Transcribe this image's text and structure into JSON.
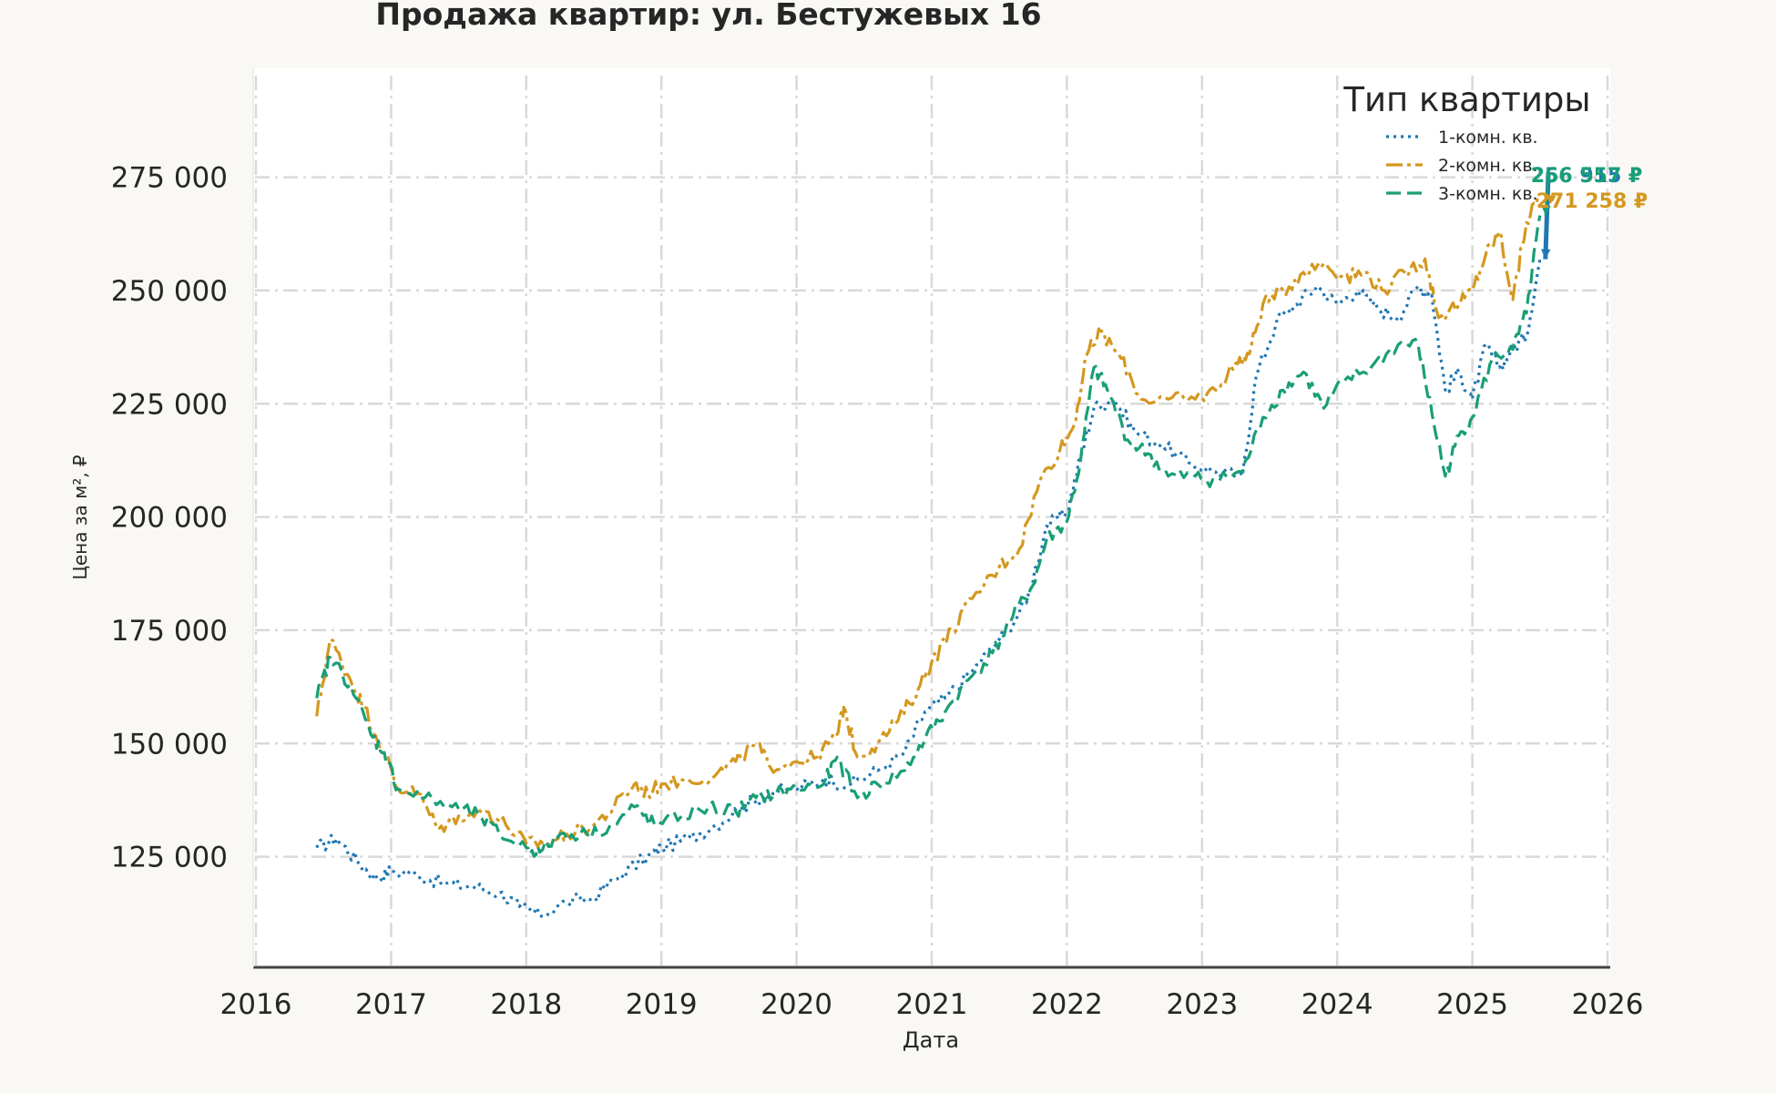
{
  "chart_data": {
    "type": "line",
    "title": "Продажа квартир: ул. Бестужевых 16",
    "xlabel": "Дата",
    "ylabel": "Цена за м², ₽",
    "xlim": [
      2016.0,
      2026.0
    ],
    "ylim": [
      103000,
      290000
    ],
    "x_ticks": [
      2016,
      2017,
      2018,
      2019,
      2020,
      2021,
      2022,
      2023,
      2024,
      2025,
      2026
    ],
    "x_tick_labels": [
      "2016",
      "2017",
      "2018",
      "2019",
      "2020",
      "2021",
      "2022",
      "2023",
      "2024",
      "2025",
      "2026"
    ],
    "y_ticks": [
      125000,
      150000,
      175000,
      200000,
      225000,
      250000,
      275000
    ],
    "y_tick_labels": [
      "125 000",
      "150 000",
      "175 000",
      "200 000",
      "225 000",
      "250 000",
      "275 000"
    ],
    "grid": true,
    "legend": {
      "title": "Тип квартиры",
      "placement": "top-right"
    },
    "series": [
      {
        "name": "1-комн. кв.",
        "color": "#1f77b4",
        "dash": "dotted",
        "end_label": "256 915 ₽",
        "points": [
          [
            2016.45,
            127000
          ],
          [
            2016.6,
            129000
          ],
          [
            2016.75,
            124000
          ],
          [
            2016.9,
            120000
          ],
          [
            2017.0,
            122000
          ],
          [
            2017.2,
            121000
          ],
          [
            2017.4,
            119000
          ],
          [
            2017.6,
            118500
          ],
          [
            2017.8,
            117000
          ],
          [
            2017.95,
            114000
          ],
          [
            2018.1,
            112000
          ],
          [
            2018.3,
            115000
          ],
          [
            2018.5,
            116000
          ],
          [
            2018.7,
            121000
          ],
          [
            2018.9,
            125000
          ],
          [
            2019.0,
            127000
          ],
          [
            2019.2,
            129000
          ],
          [
            2019.4,
            132000
          ],
          [
            2019.6,
            136000
          ],
          [
            2019.8,
            139000
          ],
          [
            2020.0,
            140000
          ],
          [
            2020.2,
            142000
          ],
          [
            2020.4,
            141000
          ],
          [
            2020.6,
            144000
          ],
          [
            2020.8,
            148000
          ],
          [
            2020.95,
            157000
          ],
          [
            2021.1,
            160000
          ],
          [
            2021.3,
            166000
          ],
          [
            2021.5,
            173000
          ],
          [
            2021.7,
            181000
          ],
          [
            2021.85,
            198000
          ],
          [
            2022.0,
            201000
          ],
          [
            2022.1,
            213000
          ],
          [
            2022.2,
            224000
          ],
          [
            2022.35,
            226000
          ],
          [
            2022.5,
            219000
          ],
          [
            2022.7,
            216000
          ],
          [
            2022.9,
            212000
          ],
          [
            2023.1,
            210000
          ],
          [
            2023.3,
            209000
          ],
          [
            2023.4,
            231000
          ],
          [
            2023.55,
            243000
          ],
          [
            2023.7,
            247000
          ],
          [
            2023.85,
            251000
          ],
          [
            2024.0,
            247000
          ],
          [
            2024.15,
            250000
          ],
          [
            2024.3,
            246000
          ],
          [
            2024.45,
            244000
          ],
          [
            2024.6,
            251000
          ],
          [
            2024.7,
            249000
          ],
          [
            2024.8,
            228000
          ],
          [
            2024.9,
            232000
          ],
          [
            2025.0,
            226000
          ],
          [
            2025.1,
            238000
          ],
          [
            2025.2,
            233000
          ],
          [
            2025.3,
            237000
          ],
          [
            2025.4,
            240000
          ],
          [
            2025.5,
            256915
          ]
        ]
      },
      {
        "name": "2-комн. кв.",
        "color": "#d4981f",
        "dash": "dashdot",
        "end_label": "271 258 ₽",
        "points": [
          [
            2016.45,
            156000
          ],
          [
            2016.55,
            173000
          ],
          [
            2016.7,
            164000
          ],
          [
            2016.8,
            158000
          ],
          [
            2016.95,
            148000
          ],
          [
            2017.05,
            140000
          ],
          [
            2017.2,
            139000
          ],
          [
            2017.35,
            131000
          ],
          [
            2017.5,
            134000
          ],
          [
            2017.7,
            135000
          ],
          [
            2017.85,
            132000
          ],
          [
            2018.0,
            128000
          ],
          [
            2018.15,
            128000
          ],
          [
            2018.3,
            130000
          ],
          [
            2018.5,
            132000
          ],
          [
            2018.65,
            136000
          ],
          [
            2018.8,
            141000
          ],
          [
            2018.9,
            139000
          ],
          [
            2019.0,
            141000
          ],
          [
            2019.2,
            142000
          ],
          [
            2019.4,
            143000
          ],
          [
            2019.55,
            146000
          ],
          [
            2019.7,
            150000
          ],
          [
            2019.8,
            145000
          ],
          [
            2020.0,
            146000
          ],
          [
            2020.15,
            147000
          ],
          [
            2020.3,
            152000
          ],
          [
            2020.35,
            158000
          ],
          [
            2020.45,
            147000
          ],
          [
            2020.6,
            150000
          ],
          [
            2020.75,
            155000
          ],
          [
            2020.9,
            162000
          ],
          [
            2021.0,
            168000
          ],
          [
            2021.15,
            175000
          ],
          [
            2021.3,
            182000
          ],
          [
            2021.5,
            189000
          ],
          [
            2021.65,
            193000
          ],
          [
            2021.8,
            208000
          ],
          [
            2021.95,
            215000
          ],
          [
            2022.05,
            220000
          ],
          [
            2022.15,
            236000
          ],
          [
            2022.25,
            241000
          ],
          [
            2022.4,
            235000
          ],
          [
            2022.55,
            226000
          ],
          [
            2022.75,
            226000
          ],
          [
            2022.95,
            226000
          ],
          [
            2023.1,
            228000
          ],
          [
            2023.25,
            234000
          ],
          [
            2023.35,
            236000
          ],
          [
            2023.45,
            247000
          ],
          [
            2023.6,
            250000
          ],
          [
            2023.75,
            254000
          ],
          [
            2023.9,
            256000
          ],
          [
            2024.05,
            253000
          ],
          [
            2024.2,
            254000
          ],
          [
            2024.35,
            250000
          ],
          [
            2024.5,
            254000
          ],
          [
            2024.65,
            257000
          ],
          [
            2024.75,
            244000
          ],
          [
            2024.9,
            247000
          ],
          [
            2025.0,
            250000
          ],
          [
            2025.1,
            258000
          ],
          [
            2025.2,
            263000
          ],
          [
            2025.3,
            248000
          ],
          [
            2025.4,
            265000
          ],
          [
            2025.5,
            271258
          ]
        ]
      },
      {
        "name": "3-комн. кв.",
        "color": "#1a9e77",
        "dash": "dashed",
        "end_label": "266 557 ₽",
        "points": [
          [
            2016.45,
            160000
          ],
          [
            2016.55,
            169000
          ],
          [
            2016.7,
            163000
          ],
          [
            2016.85,
            152000
          ],
          [
            2016.95,
            148000
          ],
          [
            2017.05,
            140000
          ],
          [
            2017.25,
            138000
          ],
          [
            2017.45,
            136000
          ],
          [
            2017.65,
            134000
          ],
          [
            2017.8,
            130000
          ],
          [
            2018.0,
            127000
          ],
          [
            2018.1,
            126000
          ],
          [
            2018.25,
            130000
          ],
          [
            2018.45,
            130000
          ],
          [
            2018.65,
            132000
          ],
          [
            2018.8,
            136000
          ],
          [
            2018.95,
            132000
          ],
          [
            2019.15,
            134000
          ],
          [
            2019.35,
            136000
          ],
          [
            2019.55,
            135000
          ],
          [
            2019.7,
            138000
          ],
          [
            2019.85,
            139000
          ],
          [
            2020.0,
            140000
          ],
          [
            2020.2,
            141000
          ],
          [
            2020.3,
            147000
          ],
          [
            2020.45,
            138000
          ],
          [
            2020.6,
            141000
          ],
          [
            2020.8,
            144000
          ],
          [
            2020.95,
            151000
          ],
          [
            2021.1,
            157000
          ],
          [
            2021.3,
            165000
          ],
          [
            2021.45,
            170000
          ],
          [
            2021.6,
            178000
          ],
          [
            2021.75,
            185000
          ],
          [
            2021.85,
            195000
          ],
          [
            2022.0,
            199000
          ],
          [
            2022.1,
            212000
          ],
          [
            2022.2,
            233000
          ],
          [
            2022.3,
            228000
          ],
          [
            2022.45,
            217000
          ],
          [
            2022.6,
            214000
          ],
          [
            2022.75,
            209000
          ],
          [
            2022.95,
            209000
          ],
          [
            2023.1,
            208000
          ],
          [
            2023.3,
            210000
          ],
          [
            2023.45,
            222000
          ],
          [
            2023.6,
            228000
          ],
          [
            2023.75,
            232000
          ],
          [
            2023.9,
            224000
          ],
          [
            2024.05,
            230000
          ],
          [
            2024.25,
            233000
          ],
          [
            2024.45,
            238000
          ],
          [
            2024.6,
            238000
          ],
          [
            2024.7,
            223000
          ],
          [
            2024.8,
            209000
          ],
          [
            2024.9,
            218000
          ],
          [
            2025.0,
            222000
          ],
          [
            2025.15,
            235000
          ],
          [
            2025.3,
            237000
          ],
          [
            2025.4,
            245000
          ],
          [
            2025.5,
            266557
          ]
        ]
      }
    ]
  }
}
